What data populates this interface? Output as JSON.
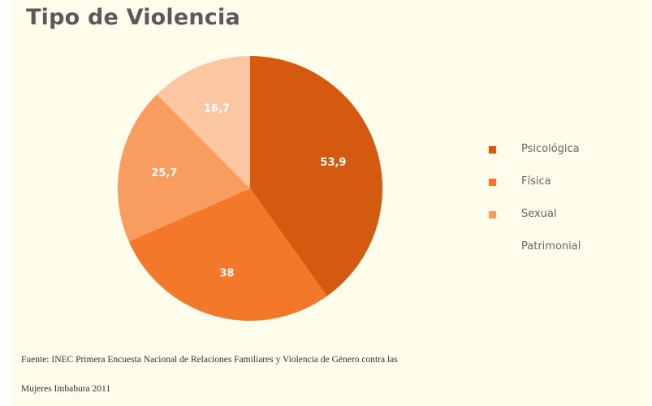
{
  "chart_data": {
    "type": "pie",
    "title": "Tipo de Violencia",
    "categories": [
      "Psicológica",
      "Física",
      "Sexual",
      "Patrimonial"
    ],
    "values": [
      53.9,
      38,
      25.7,
      16.7
    ],
    "slice_labels": [
      "53,9",
      "38",
      "25,7",
      "16,7"
    ],
    "colors": [
      "#d35a0e",
      "#f4782a",
      "#f89c5f",
      "#fbc7a2"
    ],
    "legend_position": "right"
  },
  "source": {
    "line1": "Fuente: INEC Primera Encuesta Nacional de Relaciones Familiares y Violencia de Género contra las",
    "line2": "Mujeres Imbabura 2011"
  }
}
